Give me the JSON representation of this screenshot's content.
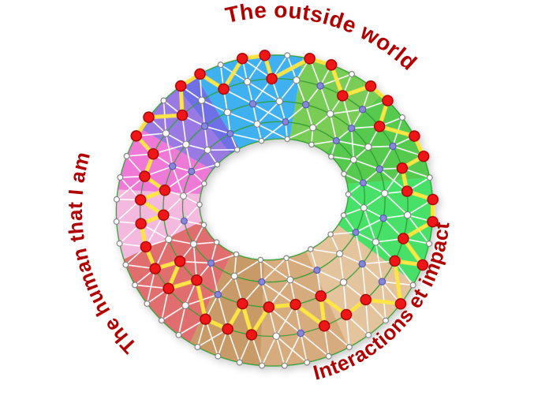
{
  "labels": {
    "top": "The outside world",
    "left": "The human that I am",
    "bottom_right": "Interactions et impact"
  },
  "palette": {
    "label_text": "#b00000",
    "ring_stroke": "#2f9e33",
    "mesh_line": "#ffffff",
    "path_highlight": "#ffe640",
    "node_white_fill": "#ffffff",
    "node_white_stroke": "#777777",
    "node_purple_fill": "#8787d8",
    "node_purple_stroke": "#5050a8",
    "node_red_fill": "#ee1414",
    "node_red_stroke": "#a30000",
    "background": "#ffffff"
  },
  "diagram": {
    "type": "radial-network-wheel",
    "sectors": [
      {
        "name": "blue",
        "from": -18,
        "to": 22,
        "color": "#41b1f0"
      },
      {
        "name": "green-light",
        "from": 22,
        "to": 54,
        "color": "#79cc55"
      },
      {
        "name": "green-mid",
        "from": 54,
        "to": 90,
        "color": "#57c94f"
      },
      {
        "name": "green-bright",
        "from": 90,
        "to": 130,
        "color": "#47e068"
      },
      {
        "name": "tan-light",
        "from": 130,
        "to": 164,
        "color": "#e4c49d"
      },
      {
        "name": "tan-mid",
        "from": 164,
        "to": 197,
        "color": "#d6ab7e"
      },
      {
        "name": "tan-dark",
        "from": 197,
        "to": 224,
        "color": "#c89a67"
      },
      {
        "name": "salmon",
        "from": 224,
        "to": 264,
        "color": "#e06e6e"
      },
      {
        "name": "pink-light",
        "from": 264,
        "to": 290,
        "color": "#f4b9de"
      },
      {
        "name": "magenta",
        "from": 290,
        "to": 314,
        "color": "#ee79d6"
      },
      {
        "name": "purple",
        "from": 314,
        "to": 334,
        "color": "#997ae2"
      },
      {
        "name": "violet",
        "from": 334,
        "to": 342,
        "color": "#6f6fe6"
      }
    ],
    "rings": [
      {
        "count": 44,
        "pattern": "white"
      },
      {
        "count": 34,
        "pattern": "alt-white-first"
      },
      {
        "count": 26,
        "pattern": "alt-purple-first"
      },
      {
        "count": 20,
        "pattern": "alt-white-first"
      },
      {
        "count": 18,
        "pattern": "white"
      }
    ],
    "highlight_path": [
      [
        1,
        33
      ],
      [
        0,
        0
      ],
      [
        0,
        1
      ],
      [
        1,
        1
      ],
      [
        0,
        3
      ],
      [
        0,
        4
      ],
      [
        1,
        4
      ],
      [
        0,
        6
      ],
      [
        0,
        7
      ],
      [
        1,
        6
      ],
      [
        0,
        9
      ],
      [
        0,
        10
      ],
      [
        1,
        8
      ],
      [
        1,
        9
      ],
      [
        0,
        12
      ],
      [
        0,
        13
      ],
      [
        1,
        11
      ],
      [
        0,
        15
      ],
      [
        1,
        12
      ],
      [
        0,
        17
      ],
      [
        1,
        14
      ],
      [
        1,
        15
      ],
      [
        2,
        12
      ],
      [
        1,
        16
      ],
      [
        2,
        13
      ],
      [
        2,
        14
      ],
      [
        1,
        19
      ],
      [
        2,
        15
      ],
      [
        1,
        20
      ],
      [
        1,
        21
      ],
      [
        2,
        17
      ],
      [
        1,
        23
      ],
      [
        2,
        18
      ],
      [
        1,
        24
      ],
      [
        1,
        25
      ],
      [
        1,
        26
      ],
      [
        2,
        20
      ],
      [
        1,
        27
      ],
      [
        2,
        21
      ],
      [
        1,
        28
      ],
      [
        1,
        29
      ],
      [
        0,
        38
      ],
      [
        0,
        39
      ],
      [
        1,
        31
      ],
      [
        0,
        41
      ],
      [
        0,
        42
      ]
    ]
  }
}
